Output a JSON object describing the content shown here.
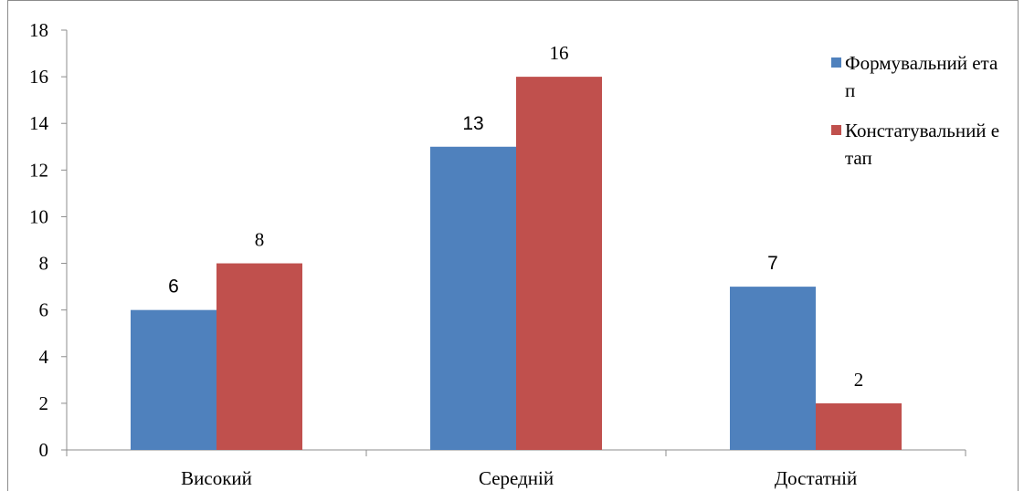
{
  "chart_data": {
    "type": "bar",
    "categories": [
      "Високий",
      "Середній",
      "Достатній"
    ],
    "series": [
      {
        "name": "Формувальний етап",
        "values": [
          6,
          13,
          7
        ],
        "color": "#4f81bd"
      },
      {
        "name": "Констатувальний етап",
        "values": [
          8,
          16,
          2
        ],
        "color": "#c0504d"
      }
    ],
    "ylim": [
      0,
      18
    ],
    "yticks": [
      0,
      2,
      4,
      6,
      8,
      10,
      12,
      14,
      16,
      18
    ],
    "grid": false,
    "legend_position": "right",
    "data_labels": true
  }
}
